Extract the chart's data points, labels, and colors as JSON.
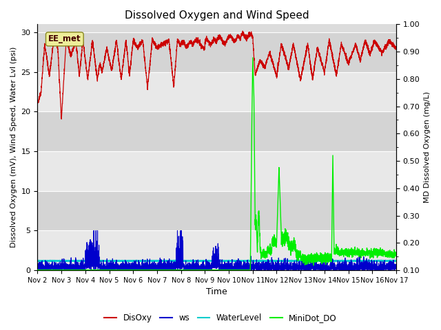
{
  "title": "Dissolved Oxygen and Wind Speed",
  "ylabel_left": "Dissolved Oxygen (mV), Wind Speed, Water Lvl (psi)",
  "ylabel_right": "MD Dissolved Oxygen (mg/L)",
  "xlabel": "Time",
  "ylim_left": [
    0,
    31
  ],
  "ylim_right": [
    0.1,
    1.0
  ],
  "annotation_text": "EE_met",
  "colors": {
    "DisOxy": "#cc0000",
    "ws": "#0000cc",
    "WaterLevel": "#00cccc",
    "MiniDot_DO": "#00ee00"
  },
  "bg_light": "#dcdcdc",
  "bg_dark": "#c8c8c8",
  "grid_color": "#ffffff",
  "xtick_labels": [
    "Nov 2",
    "Nov 3",
    "Nov 4",
    "Nov 5",
    "Nov 6",
    "Nov 7",
    "Nov 8",
    "Nov 9",
    "Nov 10",
    "Nov 11",
    "Nov 12",
    "Nov 13",
    "Nov 14",
    "Nov 15",
    "Nov 16",
    "Nov 17"
  ],
  "xtick_positions": [
    2,
    3,
    4,
    5,
    6,
    7,
    8,
    9,
    10,
    11,
    12,
    13,
    14,
    15,
    16,
    17
  ],
  "yticks_left": [
    0,
    5,
    10,
    15,
    20,
    25,
    30
  ],
  "yticks_right": [
    0.1,
    0.2,
    0.3,
    0.4,
    0.5,
    0.6,
    0.7,
    0.8,
    0.9,
    1.0
  ],
  "legend_labels": [
    "DisOxy",
    "ws",
    "WaterLevel",
    "MiniDot_DO"
  ],
  "legend_colors": [
    "#cc0000",
    "#0000cc",
    "#00cccc",
    "#00ee00"
  ]
}
